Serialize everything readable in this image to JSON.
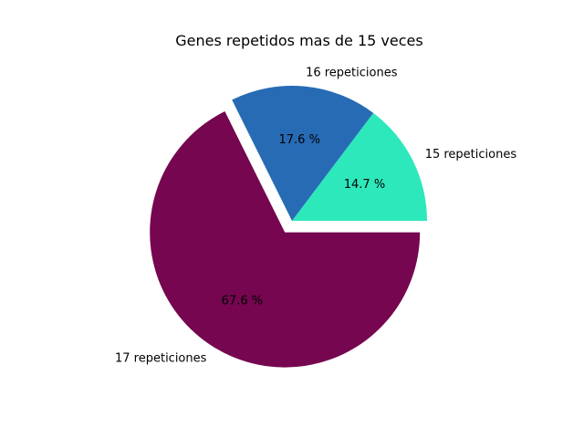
{
  "chart_data": {
    "type": "pie",
    "title": "Genes repetidos mas de 15 veces",
    "slices": [
      {
        "label": "15 repeticiones",
        "value": 14.7,
        "pct_label": "14.7 %",
        "color": "#2de8bb",
        "exploded": false
      },
      {
        "label": "16 repeticiones",
        "value": 17.6,
        "pct_label": "17.6 %",
        "color": "#276bb5",
        "exploded": false
      },
      {
        "label": "17 repeticiones",
        "value": 67.6,
        "pct_label": "67.6 %",
        "color": "#75064f",
        "exploded": true
      }
    ],
    "start_angle_deg": 0,
    "direction": "counterclockwise"
  }
}
